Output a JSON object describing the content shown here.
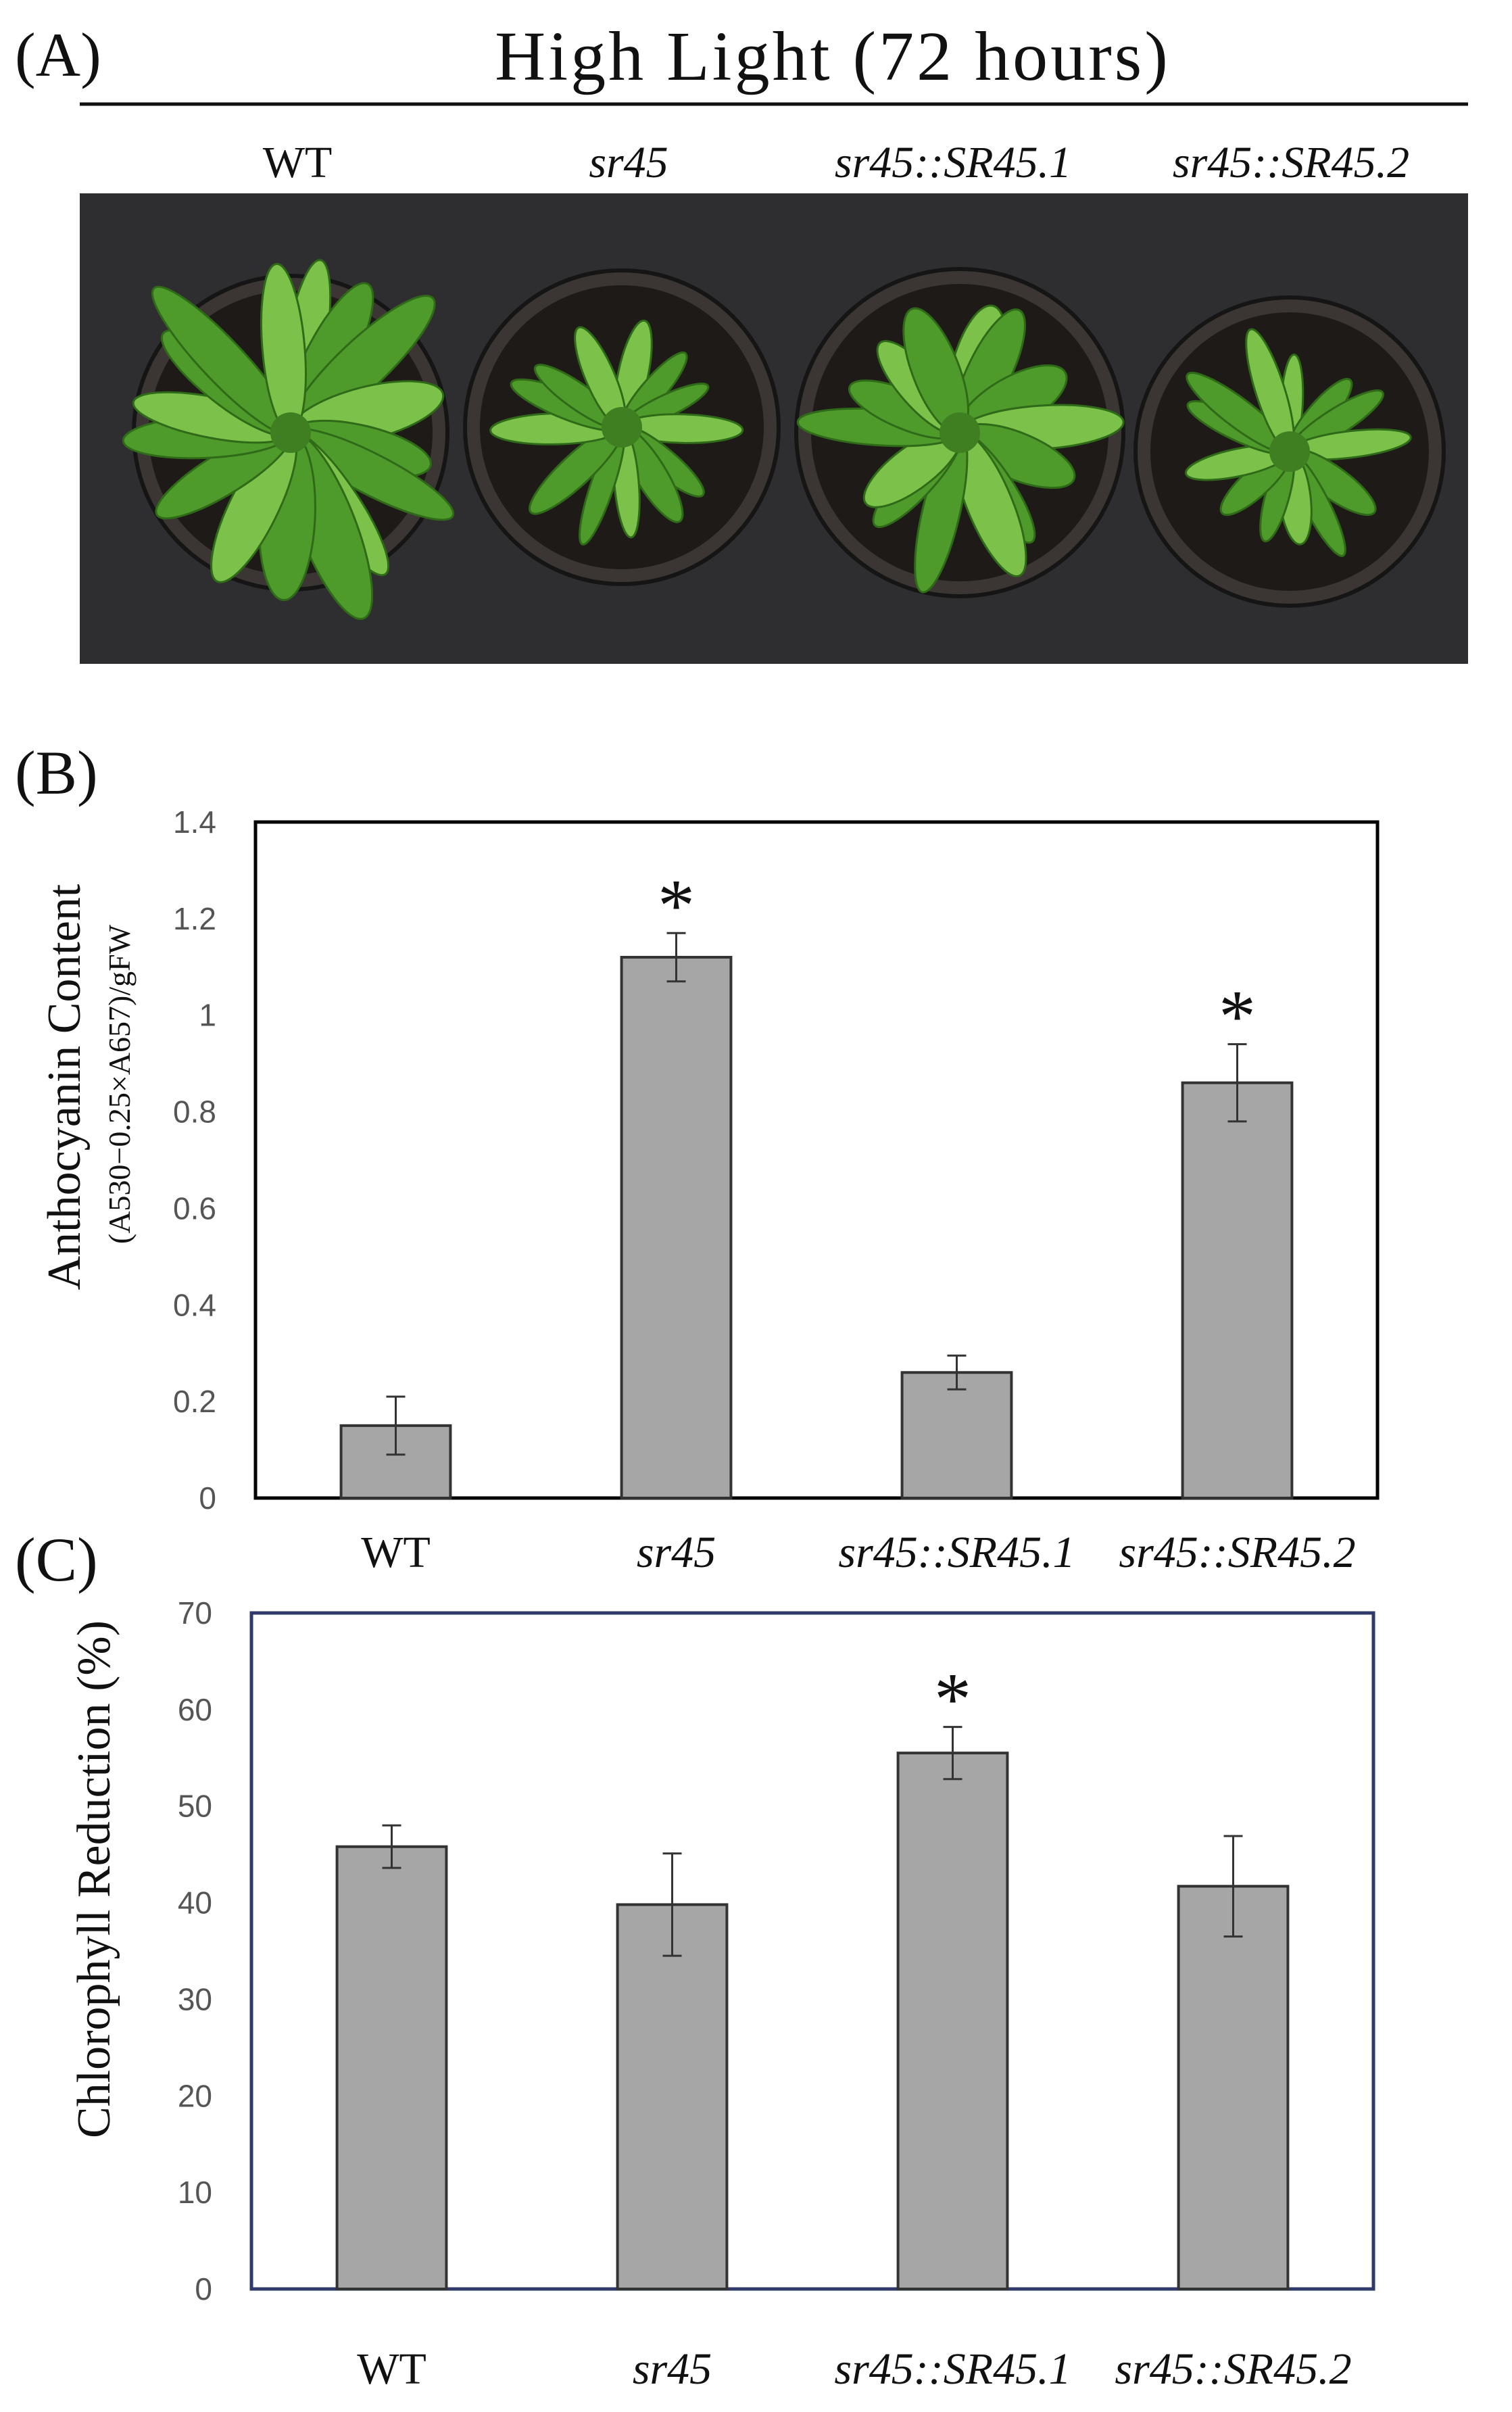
{
  "figure": {
    "panel_a": {
      "label": "(A)",
      "title": "High Light (72 hours)",
      "genotypes": [
        "WT",
        "sr45",
        "sr45::SR45.1",
        "sr45::SR45.2"
      ],
      "italic": [
        false,
        true,
        true,
        true
      ],
      "photo": {
        "background_color": "#2e2e30",
        "pot_color": "#3b3634",
        "soil_color": "#1e1a17",
        "leaf_color": "#4e9a2a",
        "leaf_highlight_color": "#7cc24a",
        "plants": [
          {
            "name": "WT",
            "vigor": "large"
          },
          {
            "name": "sr45",
            "vigor": "small"
          },
          {
            "name": "sr45::SR45.1",
            "vigor": "medium"
          },
          {
            "name": "sr45::SR45.2",
            "vigor": "small"
          }
        ]
      }
    }
  },
  "chart_data": [
    {
      "panel_label": "(B)",
      "type": "bar",
      "categories": [
        "WT",
        "sr45",
        "sr45::SR45.1",
        "sr45::SR45.2"
      ],
      "italic": [
        false,
        true,
        true,
        true
      ],
      "values": [
        0.15,
        1.12,
        0.26,
        0.86
      ],
      "errors": [
        0.06,
        0.05,
        0.035,
        0.08
      ],
      "significant": [
        false,
        true,
        false,
        true
      ],
      "significance_marker": "*",
      "ylabel": "Anthocyanin Content",
      "ylabel_sub": "(A530−0.25×A657)/gFW",
      "ylim": [
        0,
        1.4
      ],
      "yticks": [
        0,
        0.2,
        0.4,
        0.6,
        0.8,
        1,
        1.2,
        1.4
      ],
      "ytick_labels": [
        "0",
        "0.2",
        "0.4",
        "0.6",
        "0.8",
        "1",
        "1.2",
        "1.4"
      ],
      "bar_color": "#a6a6a6",
      "frame_color": "#000000",
      "grid": false
    },
    {
      "panel_label": "(C)",
      "type": "bar",
      "categories": [
        "WT",
        "sr45",
        "sr45::SR45.1",
        "sr45::SR45.2"
      ],
      "italic": [
        false,
        true,
        true,
        true
      ],
      "values": [
        45.8,
        39.8,
        55.5,
        41.7
      ],
      "errors": [
        2.2,
        5.3,
        2.7,
        5.2
      ],
      "significant": [
        false,
        false,
        true,
        false
      ],
      "significance_marker": "*",
      "ylabel": "Chlorophyll Reduction (%)",
      "ylim": [
        0,
        70
      ],
      "yticks": [
        0,
        10,
        20,
        30,
        40,
        50,
        60,
        70
      ],
      "ytick_labels": [
        "0",
        "10",
        "20",
        "30",
        "40",
        "50",
        "60",
        "70"
      ],
      "bar_color": "#a6a6a6",
      "frame_color": "#2f3a6b",
      "grid": false
    }
  ]
}
